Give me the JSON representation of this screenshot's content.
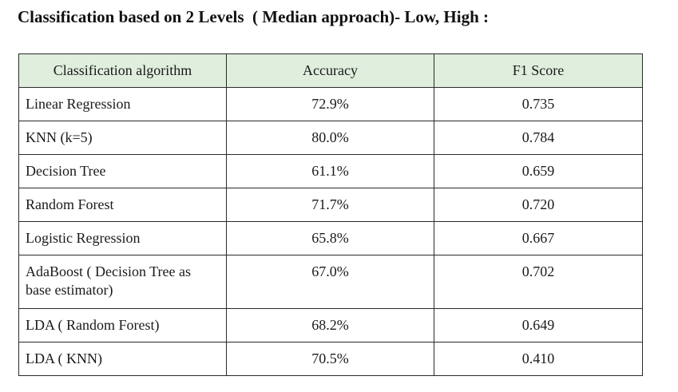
{
  "document": {
    "title": "Classification based on 2 Levels  ( Median approach)- Low, High :"
  },
  "table": {
    "headers": [
      "Classification algorithm",
      "Accuracy",
      "F1 Score"
    ],
    "rows": [
      {
        "algorithm": "Linear Regression",
        "accuracy": "72.9%",
        "f1": "0.735"
      },
      {
        "algorithm": "KNN (k=5)",
        "accuracy": "80.0%",
        "f1": "0.784"
      },
      {
        "algorithm": "Decision Tree",
        "accuracy": "61.1%",
        "f1": "0.659"
      },
      {
        "algorithm": "Random Forest",
        "accuracy": "71.7%",
        "f1": "0.720"
      },
      {
        "algorithm": "Logistic Regression",
        "accuracy": "65.8%",
        "f1": "0.667"
      },
      {
        "algorithm": "AdaBoost ( Decision Tree as base estimator)",
        "accuracy": "67.0%",
        "f1": "0.702"
      },
      {
        "algorithm": "LDA ( Random Forest)",
        "accuracy": "68.2%",
        "f1": "0.649"
      },
      {
        "algorithm": "LDA ( KNN)",
        "accuracy": "70.5%",
        "f1": "0.410"
      }
    ]
  },
  "colors": {
    "header_background": "#dfeedd",
    "border": "#2a2a2a",
    "text": "#1a1a1a"
  }
}
